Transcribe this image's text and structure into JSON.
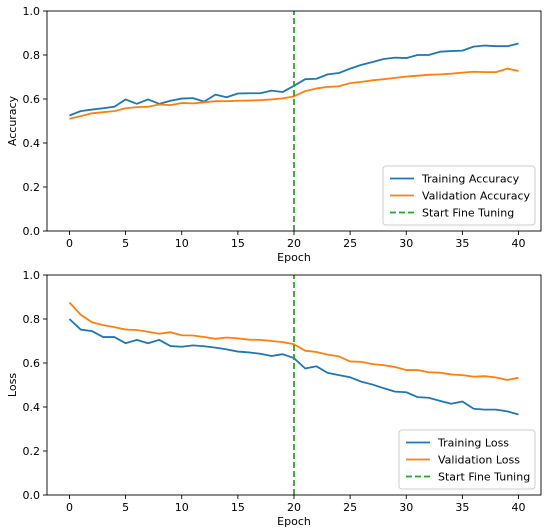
{
  "chart_data": [
    {
      "type": "line",
      "xlabel": "Epoch",
      "ylabel": "Accuracy",
      "xlim": [
        -2,
        42
      ],
      "ylim": [
        0.0,
        1.0
      ],
      "xticks": [
        0,
        5,
        10,
        15,
        20,
        25,
        30,
        35,
        40
      ],
      "xtick_labels": [
        "0",
        "5",
        "10",
        "15",
        "20",
        "25",
        "30",
        "35",
        "40"
      ],
      "yticks": [
        0.0,
        0.2,
        0.4,
        0.6,
        0.8,
        1.0
      ],
      "ytick_labels": [
        "0.0",
        "0.2",
        "0.4",
        "0.6",
        "0.8",
        "1.0"
      ],
      "grid": false,
      "legend_position": "lower-right",
      "series": [
        {
          "name": "Training Accuracy",
          "color": "#1f77b4",
          "style": "solid",
          "x": [
            0,
            1,
            2,
            3,
            4,
            5,
            6,
            7,
            8,
            9,
            10,
            11,
            12,
            13,
            14,
            15,
            16,
            17,
            18,
            19,
            20,
            21,
            22,
            23,
            24,
            25,
            26,
            27,
            28,
            29,
            30,
            31,
            32,
            33,
            34,
            35,
            36,
            37,
            38,
            39,
            40
          ],
          "y": [
            0.525,
            0.545,
            0.552,
            0.558,
            0.565,
            0.598,
            0.578,
            0.598,
            0.578,
            0.592,
            0.602,
            0.604,
            0.588,
            0.62,
            0.608,
            0.625,
            0.626,
            0.626,
            0.638,
            0.632,
            0.66,
            0.69,
            0.692,
            0.712,
            0.718,
            0.738,
            0.755,
            0.768,
            0.782,
            0.788,
            0.786,
            0.8,
            0.8,
            0.815,
            0.818,
            0.82,
            0.838,
            0.843,
            0.84,
            0.84,
            0.852
          ]
        },
        {
          "name": "Validation Accuracy",
          "color": "#ff7f0e",
          "style": "solid",
          "x": [
            0,
            1,
            2,
            3,
            4,
            5,
            6,
            7,
            8,
            9,
            10,
            11,
            12,
            13,
            14,
            15,
            16,
            17,
            18,
            19,
            20,
            21,
            22,
            23,
            24,
            25,
            26,
            27,
            28,
            29,
            30,
            31,
            32,
            33,
            34,
            35,
            36,
            37,
            38,
            39,
            40
          ],
          "y": [
            0.51,
            0.522,
            0.535,
            0.54,
            0.545,
            0.558,
            0.563,
            0.565,
            0.575,
            0.572,
            0.582,
            0.58,
            0.585,
            0.59,
            0.59,
            0.592,
            0.593,
            0.595,
            0.598,
            0.603,
            0.612,
            0.636,
            0.648,
            0.655,
            0.658,
            0.672,
            0.678,
            0.685,
            0.69,
            0.696,
            0.702,
            0.706,
            0.71,
            0.712,
            0.715,
            0.72,
            0.724,
            0.722,
            0.722,
            0.738,
            0.728
          ]
        },
        {
          "name": "Start Fine Tuning",
          "color": "#2ca02c",
          "style": "dashed",
          "x": [
            20,
            20
          ],
          "y": [
            0.0,
            1.0
          ]
        }
      ]
    },
    {
      "type": "line",
      "xlabel": "Epoch",
      "ylabel": "Loss",
      "xlim": [
        -2,
        42
      ],
      "ylim": [
        0.0,
        1.0
      ],
      "xticks": [
        0,
        5,
        10,
        15,
        20,
        25,
        30,
        35,
        40
      ],
      "xtick_labels": [
        "0",
        "5",
        "10",
        "15",
        "20",
        "25",
        "30",
        "35",
        "40"
      ],
      "yticks": [
        0.0,
        0.2,
        0.4,
        0.6,
        0.8,
        1.0
      ],
      "ytick_labels": [
        "0.0",
        "0.2",
        "0.4",
        "0.6",
        "0.8",
        "1.0"
      ],
      "grid": false,
      "legend_position": "lower-right",
      "series": [
        {
          "name": "Training Loss",
          "color": "#1f77b4",
          "style": "solid",
          "x": [
            0,
            1,
            2,
            3,
            4,
            5,
            6,
            7,
            8,
            9,
            10,
            11,
            12,
            13,
            14,
            15,
            16,
            17,
            18,
            19,
            20,
            21,
            22,
            23,
            24,
            25,
            26,
            27,
            28,
            29,
            30,
            31,
            32,
            33,
            34,
            35,
            36,
            37,
            38,
            39,
            40
          ],
          "y": [
            0.8,
            0.752,
            0.745,
            0.718,
            0.718,
            0.69,
            0.705,
            0.69,
            0.705,
            0.677,
            0.674,
            0.68,
            0.676,
            0.67,
            0.662,
            0.652,
            0.648,
            0.642,
            0.632,
            0.64,
            0.622,
            0.575,
            0.585,
            0.555,
            0.545,
            0.535,
            0.515,
            0.502,
            0.485,
            0.47,
            0.467,
            0.445,
            0.442,
            0.428,
            0.415,
            0.425,
            0.392,
            0.388,
            0.388,
            0.38,
            0.366
          ]
        },
        {
          "name": "Validation Loss",
          "color": "#ff7f0e",
          "style": "solid",
          "x": [
            0,
            1,
            2,
            3,
            4,
            5,
            6,
            7,
            8,
            9,
            10,
            11,
            12,
            13,
            14,
            15,
            16,
            17,
            18,
            19,
            20,
            21,
            22,
            23,
            24,
            25,
            26,
            27,
            28,
            29,
            30,
            31,
            32,
            33,
            34,
            35,
            36,
            37,
            38,
            39,
            40
          ],
          "y": [
            0.875,
            0.82,
            0.785,
            0.772,
            0.763,
            0.752,
            0.75,
            0.742,
            0.733,
            0.74,
            0.726,
            0.725,
            0.718,
            0.71,
            0.716,
            0.712,
            0.706,
            0.705,
            0.7,
            0.695,
            0.685,
            0.656,
            0.65,
            0.638,
            0.63,
            0.607,
            0.605,
            0.595,
            0.59,
            0.582,
            0.568,
            0.568,
            0.558,
            0.556,
            0.548,
            0.545,
            0.538,
            0.54,
            0.534,
            0.523,
            0.533
          ]
        },
        {
          "name": "Start Fine Tuning",
          "color": "#2ca02c",
          "style": "dashed",
          "x": [
            20,
            20
          ],
          "y": [
            0.0,
            1.0
          ]
        }
      ]
    }
  ]
}
